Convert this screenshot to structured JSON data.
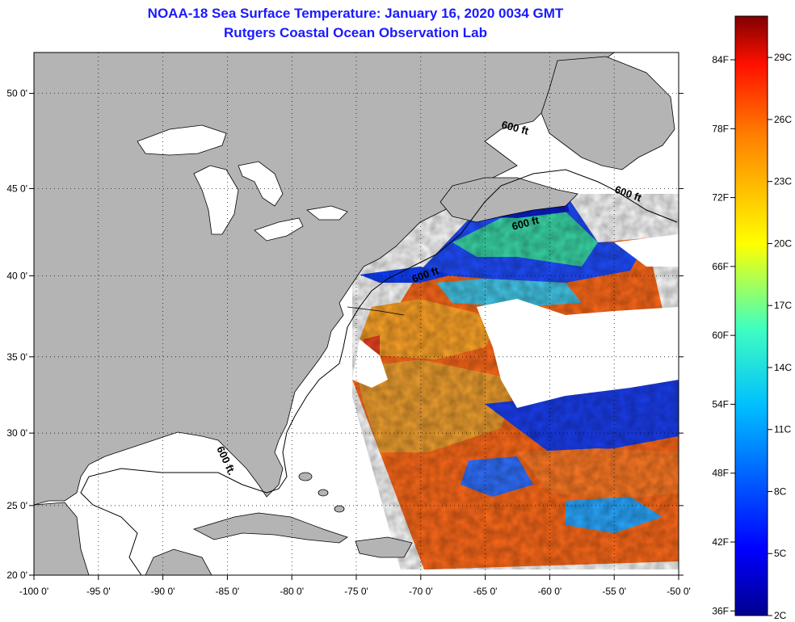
{
  "title": {
    "line1": "NOAA-18 Sea Surface Temperature:  January 16, 2020 0034 GMT",
    "line2": "Rutgers Coastal Ocean Observation Lab"
  },
  "map": {
    "lon_range": [
      -100,
      -50
    ],
    "lat_range": [
      20,
      52
    ],
    "lon_ticks": [
      {
        "value": -100,
        "label": "-100 0'"
      },
      {
        "value": -95,
        "label": "-95 0'"
      },
      {
        "value": -90,
        "label": "-90 0'"
      },
      {
        "value": -85,
        "label": "-85 0'"
      },
      {
        "value": -80,
        "label": "-80 0'"
      },
      {
        "value": -75,
        "label": "-75 0'"
      },
      {
        "value": -70,
        "label": "-70 0'"
      },
      {
        "value": -65,
        "label": "-65 0'"
      },
      {
        "value": -60,
        "label": "-60 0'"
      },
      {
        "value": -55,
        "label": "-55 0'"
      },
      {
        "value": -50,
        "label": "-50 0'"
      }
    ],
    "lat_ticks": [
      {
        "value": 50,
        "label": "50 0'"
      },
      {
        "value": 45,
        "label": "45 0'"
      },
      {
        "value": 40,
        "label": "40 0'"
      },
      {
        "value": 35,
        "label": "35 0'"
      },
      {
        "value": 30,
        "label": "30 0'"
      },
      {
        "value": 25,
        "label": "25 0'"
      },
      {
        "value": 20,
        "label": "20 0'"
      }
    ],
    "depth_labels": [
      "600 ft.",
      "600 ft",
      "600 ft",
      "600 ft",
      "600 ft"
    ],
    "colors": {
      "land": "#b4b4b4",
      "water": "#ffffff",
      "cold": "#0018ff",
      "cool": "#00a0ff",
      "mild": "#33dd99",
      "warm": "#ffa020",
      "hot": "#ff4a10"
    }
  },
  "colorbar": {
    "fahrenheit_labels": [
      "84F",
      "78F",
      "72F",
      "66F",
      "60F",
      "54F",
      "48F",
      "42F",
      "36F"
    ],
    "celsius_labels": [
      "29C",
      "26C",
      "23C",
      "20C",
      "17C",
      "14C",
      "11C",
      "8C",
      "5C",
      "2C"
    ],
    "min_c": 2,
    "max_c": 31
  }
}
